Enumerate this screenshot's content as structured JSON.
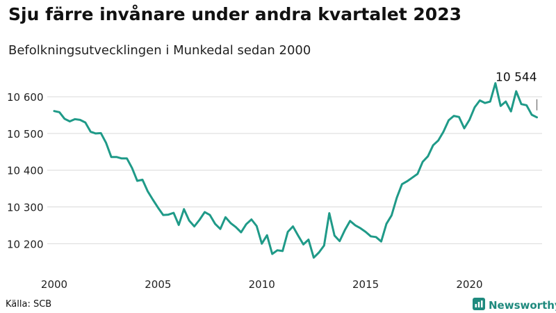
{
  "title": "Sju färre invånare under andra kvartalet 2023",
  "subtitle": "Befolkningsutvecklingen i Munkedal sedan 2000",
  "source": "Källa: SCB",
  "brand": "Newsworthy",
  "colors": {
    "line": "#1f9a88",
    "grid": "#d9d9d9",
    "brand": "#1f8a7e"
  },
  "chart_data": {
    "type": "line",
    "title": "Sju färre invånare under andra kvartalet 2023",
    "subtitle": "Befolkningsutvecklingen i Munkedal sedan 2000",
    "xlabel": "",
    "ylabel": "",
    "xlim": [
      2000,
      2023.5
    ],
    "ylim": [
      10140,
      10640
    ],
    "grid": "horizontal",
    "x_ticks": [
      2000,
      2005,
      2010,
      2015,
      2020
    ],
    "x_tick_labels": [
      "2000",
      "2005",
      "2010",
      "2015",
      "2020"
    ],
    "y_ticks": [
      10200,
      10300,
      10400,
      10500,
      10600
    ],
    "y_tick_labels": [
      "10 200",
      "10 300",
      "10 400",
      "10 500",
      "10 600"
    ],
    "annotation": {
      "text": "10 544",
      "x": 2023.25,
      "y": 10544
    },
    "series": [
      {
        "x": [
          2000.0,
          2000.25,
          2000.5,
          2000.75,
          2001.0,
          2001.25,
          2001.5,
          2001.75,
          2002.0,
          2002.25,
          2002.5,
          2002.75,
          2003.0,
          2003.25,
          2003.5,
          2003.75,
          2004.0,
          2004.25,
          2004.5,
          2004.75,
          2005.0,
          2005.25,
          2005.5,
          2005.75,
          2006.0,
          2006.25,
          2006.5,
          2006.75,
          2007.0,
          2007.25,
          2007.5,
          2007.75,
          2008.0,
          2008.25,
          2008.5,
          2008.75,
          2009.0,
          2009.25,
          2009.5,
          2009.75,
          2010.0,
          2010.25,
          2010.5,
          2010.75,
          2011.0,
          2011.25,
          2011.5,
          2011.75,
          2012.0,
          2012.25,
          2012.5,
          2012.75,
          2013.0,
          2013.25,
          2013.5,
          2013.75,
          2014.0,
          2014.25,
          2014.5,
          2014.75,
          2015.0,
          2015.25,
          2015.5,
          2015.75,
          2016.0,
          2016.25,
          2016.5,
          2016.75,
          2017.0,
          2017.25,
          2017.5,
          2017.75,
          2018.0,
          2018.25,
          2018.5,
          2018.75,
          2019.0,
          2019.25,
          2019.5,
          2019.75,
          2020.0,
          2020.25,
          2020.5,
          2020.75,
          2021.0,
          2021.25,
          2021.5,
          2021.75,
          2022.0,
          2022.25,
          2022.5,
          2022.75,
          2023.0,
          2023.25
        ],
        "values": [
          10561,
          10558,
          10540,
          10533,
          10539,
          10537,
          10530,
          10505,
          10500,
          10501,
          10474,
          10436,
          10436,
          10432,
          10432,
          10406,
          10371,
          10374,
          10343,
          10320,
          10298,
          10278,
          10279,
          10284,
          10251,
          10294,
          10263,
          10247,
          10265,
          10286,
          10278,
          10254,
          10240,
          10272,
          10256,
          10245,
          10231,
          10253,
          10266,
          10248,
          10200,
          10223,
          10172,
          10182,
          10180,
          10232,
          10247,
          10222,
          10198,
          10211,
          10162,
          10176,
          10195,
          10283,
          10222,
          10207,
          10237,
          10262,
          10250,
          10242,
          10232,
          10220,
          10218,
          10206,
          10254,
          10277,
          10325,
          10362,
          10370,
          10380,
          10390,
          10423,
          10438,
          10468,
          10481,
          10505,
          10536,
          10548,
          10545,
          10514,
          10537,
          10571,
          10590,
          10583,
          10587,
          10637,
          10575,
          10587,
          10560,
          10615,
          10580,
          10577,
          10551,
          10544
        ]
      }
    ]
  }
}
